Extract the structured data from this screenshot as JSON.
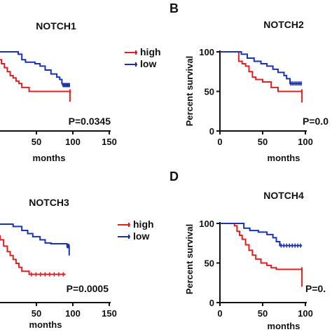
{
  "chart_data": [
    {
      "panel": "",
      "type": "line",
      "title": "NOTCH1",
      "xlabel": "months",
      "ylabel": "",
      "xlim": [
        0,
        150
      ],
      "ylim": [
        0,
        100
      ],
      "x_ticks": [
        50,
        100,
        150
      ],
      "y_ticks": [],
      "p_value": "P=0.0345",
      "legend": {
        "placement": "top-right",
        "entries": [
          "high",
          "low"
        ]
      },
      "series": [
        {
          "name": "high",
          "color": "#e02020",
          "x": [
            -10,
            -2,
            2,
            6,
            10,
            14,
            18,
            22,
            26,
            30,
            40,
            96,
            96
          ],
          "y": [
            100,
            90,
            85,
            80,
            75,
            70,
            67,
            63,
            60,
            55,
            50,
            50,
            37
          ]
        },
        {
          "name": "low",
          "color": "#1a33b0",
          "x": [
            -10,
            15,
            25,
            30,
            35,
            48,
            55,
            62,
            70,
            78,
            82,
            85,
            86,
            96
          ],
          "y": [
            100,
            100,
            97,
            90,
            87,
            85,
            82,
            77,
            72,
            68,
            65,
            60,
            58,
            58
          ]
        }
      ]
    },
    {
      "panel": "B",
      "type": "line",
      "title": "NOTCH2",
      "xlabel": "months",
      "ylabel": "Percent survival",
      "xlim": [
        0,
        100
      ],
      "ylim": [
        0,
        100
      ],
      "x_ticks": [
        0,
        50,
        100
      ],
      "y_ticks": [
        0,
        50,
        100
      ],
      "p_value": "P=0.0",
      "legend": null,
      "series": [
        {
          "name": "high",
          "color": "#e02020",
          "x": [
            0,
            18,
            22,
            26,
            30,
            34,
            38,
            42,
            50,
            60,
            68,
            96,
            96
          ],
          "y": [
            100,
            100,
            88,
            85,
            82,
            75,
            68,
            65,
            62,
            55,
            50,
            50,
            36
          ]
        },
        {
          "name": "low",
          "color": "#1a33b0",
          "x": [
            0,
            20,
            25,
            32,
            40,
            48,
            55,
            62,
            68,
            75,
            78,
            82,
            96
          ],
          "y": [
            100,
            100,
            97,
            92,
            88,
            85,
            82,
            78,
            74,
            70,
            66,
            60,
            60
          ]
        }
      ]
    },
    {
      "panel": "",
      "type": "line",
      "title": "NOTCH3",
      "xlabel": "months",
      "ylabel": "",
      "xlim": [
        0,
        150
      ],
      "ylim": [
        0,
        100
      ],
      "x_ticks": [
        50,
        100,
        150
      ],
      "y_ticks": [],
      "p_value": "P=0.0005",
      "legend": {
        "placement": "top-right",
        "entries": [
          "high",
          "low"
        ]
      },
      "series": [
        {
          "name": "high",
          "color": "#e02020",
          "x": [
            -10,
            -5,
            0,
            5,
            10,
            14,
            18,
            22,
            26,
            30,
            40,
            90
          ],
          "y": [
            100,
            85,
            80,
            72,
            65,
            60,
            55,
            50,
            45,
            40,
            36,
            36
          ]
        },
        {
          "name": "low",
          "color": "#1a33b0",
          "x": [
            -10,
            10,
            18,
            30,
            38,
            45,
            55,
            62,
            70,
            85,
            92,
            95
          ],
          "y": [
            100,
            100,
            97,
            92,
            88,
            84,
            80,
            76,
            75,
            75,
            72,
            60
          ]
        }
      ]
    },
    {
      "panel": "D",
      "type": "line",
      "title": "NOTCH4",
      "xlabel": "months",
      "ylabel": "Percent survival",
      "xlim": [
        0,
        100
      ],
      "ylim": [
        0,
        100
      ],
      "x_ticks": [
        0,
        50,
        100
      ],
      "y_ticks": [
        0,
        50,
        100
      ],
      "p_value": "P=0.",
      "legend": null,
      "series": [
        {
          "name": "high",
          "color": "#e02020",
          "x": [
            0,
            14,
            17,
            20,
            23,
            26,
            30,
            34,
            38,
            42,
            48,
            55,
            60,
            66,
            96,
            96
          ],
          "y": [
            100,
            100,
            97,
            90,
            85,
            80,
            73,
            66,
            60,
            55,
            50,
            47,
            44,
            42,
            42,
            20
          ]
        },
        {
          "name": "low",
          "color": "#1a33b0",
          "x": [
            0,
            20,
            28,
            35,
            45,
            55,
            62,
            66,
            70,
            96
          ],
          "y": [
            100,
            100,
            94,
            91,
            89,
            86,
            82,
            77,
            72,
            72
          ]
        }
      ]
    }
  ]
}
